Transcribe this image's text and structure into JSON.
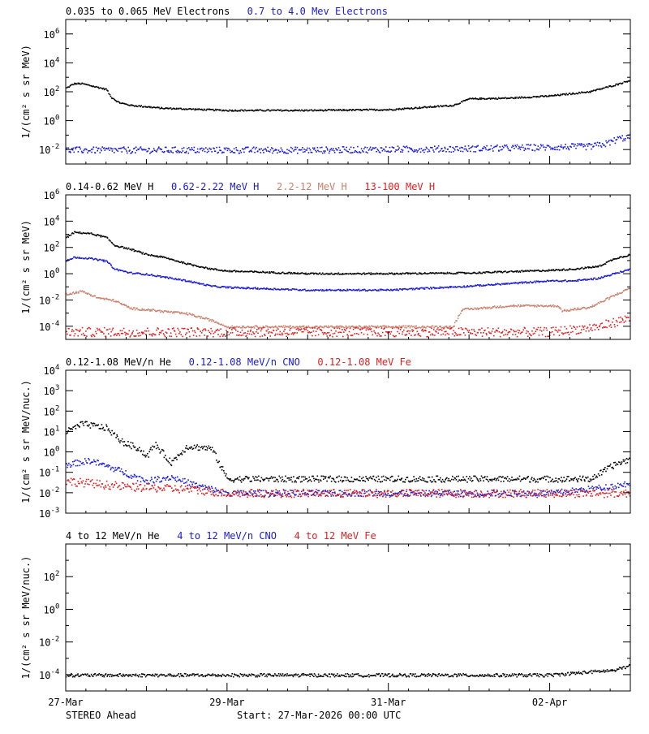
{
  "colors": {
    "black": "#000000",
    "blue": "#1a1ad6",
    "tan": "#c8806c",
    "red": "#e02020",
    "background": "#ffffff"
  },
  "footer": {
    "spacecraft": "STEREO Ahead",
    "start": "Start: 27-Mar-2026 00:00 UTC"
  },
  "chart_data": [
    {
      "type": "scatter",
      "scale": "log",
      "ylim_exp": [
        -3,
        7
      ],
      "ytick_exps": [
        -2,
        0,
        2,
        4,
        6
      ],
      "ylabel": "1/(cm² s sr MeV)",
      "x_days": [
        0,
        7
      ],
      "xtick_days": [
        0,
        2,
        4,
        6
      ],
      "xtick_labels": [
        "27-Mar",
        "29-Mar",
        "31-Mar",
        "02-Apr"
      ],
      "show_xtick_labels": false,
      "legend": [
        {
          "text": "0.035 to 0.065 MeV Electrons",
          "color_key": "black"
        },
        {
          "text": "0.7 to 4.0 Mev Electrons",
          "color_key": "blue"
        }
      ],
      "series": [
        {
          "name": "0.035 to 0.065 MeV Electrons",
          "color_key": "black",
          "spread": 0.05,
          "x": [
            0.0,
            0.1,
            0.2,
            0.35,
            0.5,
            0.55,
            0.65,
            0.8,
            1.0,
            1.2,
            1.5,
            2.0,
            3.0,
            4.0,
            4.4,
            4.8,
            5.0,
            5.5,
            6.0,
            6.5,
            6.8,
            7.0
          ],
          "y": [
            2.3,
            2.6,
            2.6,
            2.4,
            2.2,
            1.7,
            1.3,
            1.1,
            1.0,
            0.9,
            0.85,
            0.75,
            0.75,
            0.8,
            0.95,
            1.1,
            1.55,
            1.6,
            1.75,
            2.05,
            2.5,
            2.85
          ]
        },
        {
          "name": "0.7 to 4.0 Mev Electrons",
          "color_key": "blue",
          "spread": 0.22,
          "x": [
            0.0,
            1.0,
            2.0,
            3.0,
            4.0,
            5.0,
            6.0,
            6.5,
            6.7,
            6.85,
            7.0
          ],
          "y": [
            -2.0,
            -2.0,
            -2.0,
            -2.0,
            -1.95,
            -1.9,
            -1.8,
            -1.75,
            -1.55,
            -1.2,
            -1.1
          ]
        }
      ]
    },
    {
      "type": "scatter",
      "scale": "log",
      "ylim_exp": [
        -5,
        6
      ],
      "ytick_exps": [
        -4,
        -2,
        0,
        2,
        4,
        6
      ],
      "ylabel": "1/(cm² s sr MeV)",
      "x_days": [
        0,
        7
      ],
      "xtick_days": [
        0,
        2,
        4,
        6
      ],
      "xtick_labels": [
        "27-Mar",
        "29-Mar",
        "31-Mar",
        "02-Apr"
      ],
      "show_xtick_labels": false,
      "legend": [
        {
          "text": "0.14-0.62 MeV H",
          "color_key": "black"
        },
        {
          "text": "0.62-2.22 MeV H",
          "color_key": "blue"
        },
        {
          "text": "2.2-12 MeV H",
          "color_key": "tan"
        },
        {
          "text": "13-100 MeV H",
          "color_key": "red"
        }
      ],
      "series": [
        {
          "name": "0.14-0.62 MeV H",
          "color_key": "black",
          "spread": 0.06,
          "x": [
            0.0,
            0.1,
            0.3,
            0.5,
            0.6,
            0.8,
            1.0,
            1.2,
            1.5,
            1.8,
            2.0,
            3.0,
            4.0,
            5.0,
            6.0,
            6.3,
            6.6,
            6.8,
            7.0
          ],
          "y": [
            2.8,
            3.2,
            3.1,
            2.8,
            2.2,
            1.9,
            1.5,
            1.3,
            0.8,
            0.4,
            0.25,
            0.05,
            0.05,
            0.1,
            0.3,
            0.4,
            0.6,
            1.2,
            1.5
          ]
        },
        {
          "name": "0.62-2.22 MeV H",
          "color_key": "blue",
          "spread": 0.06,
          "x": [
            0.0,
            0.1,
            0.3,
            0.5,
            0.6,
            0.8,
            1.0,
            1.2,
            1.5,
            1.8,
            2.0,
            3.0,
            4.0,
            5.0,
            6.0,
            6.3,
            6.6,
            7.0
          ],
          "y": [
            1.0,
            1.3,
            1.2,
            1.0,
            0.4,
            0.1,
            0.0,
            -0.2,
            -0.5,
            -0.9,
            -1.0,
            -1.2,
            -1.2,
            -0.9,
            -0.5,
            -0.5,
            -0.3,
            0.4
          ]
        },
        {
          "name": "2.2-12 MeV H",
          "color_key": "tan",
          "spread": 0.08,
          "x": [
            0.0,
            0.2,
            0.4,
            0.6,
            0.8,
            1.0,
            1.5,
            1.8,
            2.0,
            3.0,
            4.0,
            4.8,
            4.9,
            5.5,
            6.1,
            6.15,
            6.5,
            7.0
          ],
          "y": [
            -1.5,
            -1.3,
            -1.8,
            -2.0,
            -2.6,
            -2.7,
            -3.0,
            -3.5,
            -4.0,
            -4.0,
            -4.0,
            -4.0,
            -2.7,
            -2.4,
            -2.4,
            -2.8,
            -2.5,
            -1.0
          ]
        },
        {
          "name": "13-100 MeV H",
          "color_key": "red",
          "spread": 0.35,
          "x": [
            0.0,
            3.0,
            6.0,
            6.6,
            7.0
          ],
          "y": [
            -4.4,
            -4.4,
            -4.4,
            -4.0,
            -3.3
          ]
        }
      ]
    },
    {
      "type": "scatter",
      "scale": "log",
      "ylim_exp": [
        -3,
        4
      ],
      "ytick_exps": [
        -3,
        -2,
        -1,
        0,
        1,
        2,
        3,
        4
      ],
      "ylabel": "1/(cm² s sr MeV/nuc.)",
      "x_days": [
        0,
        7
      ],
      "xtick_days": [
        0,
        2,
        4,
        6
      ],
      "xtick_labels": [
        "27-Mar",
        "29-Mar",
        "31-Mar",
        "02-Apr"
      ],
      "show_xtick_labels": false,
      "legend": [
        {
          "text": "0.12-1.08 MeV/n He",
          "color_key": "black"
        },
        {
          "text": "0.12-1.08 MeV/n CNO",
          "color_key": "blue"
        },
        {
          "text": "0.12-1.08 MeV Fe",
          "color_key": "red"
        }
      ],
      "series": [
        {
          "name": "0.12-1.08 MeV/n He",
          "color_key": "black",
          "spread": 0.15,
          "x": [
            0.0,
            0.2,
            0.5,
            0.7,
            0.9,
            1.0,
            1.1,
            1.3,
            1.5,
            1.8,
            2.0,
            3.0,
            4.0,
            5.0,
            6.0,
            6.5,
            6.8,
            7.0
          ],
          "y": [
            1.0,
            1.4,
            1.2,
            0.5,
            0.2,
            -0.2,
            0.4,
            -0.5,
            0.3,
            0.2,
            -1.3,
            -1.3,
            -1.3,
            -1.3,
            -1.3,
            -1.3,
            -0.6,
            -0.3
          ]
        },
        {
          "name": "0.12-1.08 MeV/n CNO",
          "color_key": "blue",
          "spread": 0.15,
          "x": [
            0.0,
            0.3,
            0.6,
            0.8,
            1.0,
            1.3,
            1.6,
            1.8,
            2.0,
            3.0,
            4.0,
            5.0,
            6.0,
            6.7,
            7.0
          ],
          "y": [
            -0.6,
            -0.4,
            -0.8,
            -1.1,
            -1.4,
            -1.2,
            -1.6,
            -1.8,
            -2.0,
            -2.0,
            -2.0,
            -2.0,
            -2.0,
            -1.7,
            -1.5
          ]
        },
        {
          "name": "0.12-1.08 MeV Fe",
          "color_key": "red",
          "spread": 0.2,
          "x": [
            0.0,
            0.8,
            1.5,
            2.0,
            4.0,
            6.0,
            7.0
          ],
          "y": [
            -1.4,
            -1.7,
            -1.8,
            -2.0,
            -2.0,
            -2.0,
            -2.0
          ]
        }
      ]
    },
    {
      "type": "scatter",
      "scale": "log",
      "ylim_exp": [
        -5,
        4
      ],
      "ytick_exps": [
        -4,
        -2,
        0,
        2
      ],
      "ylabel": "1/(cm² s sr MeV/nuc.)",
      "x_days": [
        0,
        7
      ],
      "xtick_days": [
        0,
        2,
        4,
        6
      ],
      "xtick_labels": [
        "27-Mar",
        "29-Mar",
        "31-Mar",
        "02-Apr"
      ],
      "show_xtick_labels": true,
      "legend": [
        {
          "text": "4 to 12 MeV/n He",
          "color_key": "black"
        },
        {
          "text": "4 to 12 MeV/n CNO",
          "color_key": "blue"
        },
        {
          "text": "4 to 12 MeV Fe",
          "color_key": "red"
        }
      ],
      "series": [
        {
          "name": "4 to 12 MeV/n He",
          "color_key": "black",
          "spread": 0.1,
          "x": [
            0.0,
            2.0,
            4.0,
            5.0,
            5.5,
            6.0,
            6.5,
            6.8,
            7.0
          ],
          "y": [
            -4.0,
            -4.0,
            -4.0,
            -4.0,
            -4.0,
            -4.0,
            -3.8,
            -3.7,
            -3.4
          ]
        }
      ]
    }
  ]
}
